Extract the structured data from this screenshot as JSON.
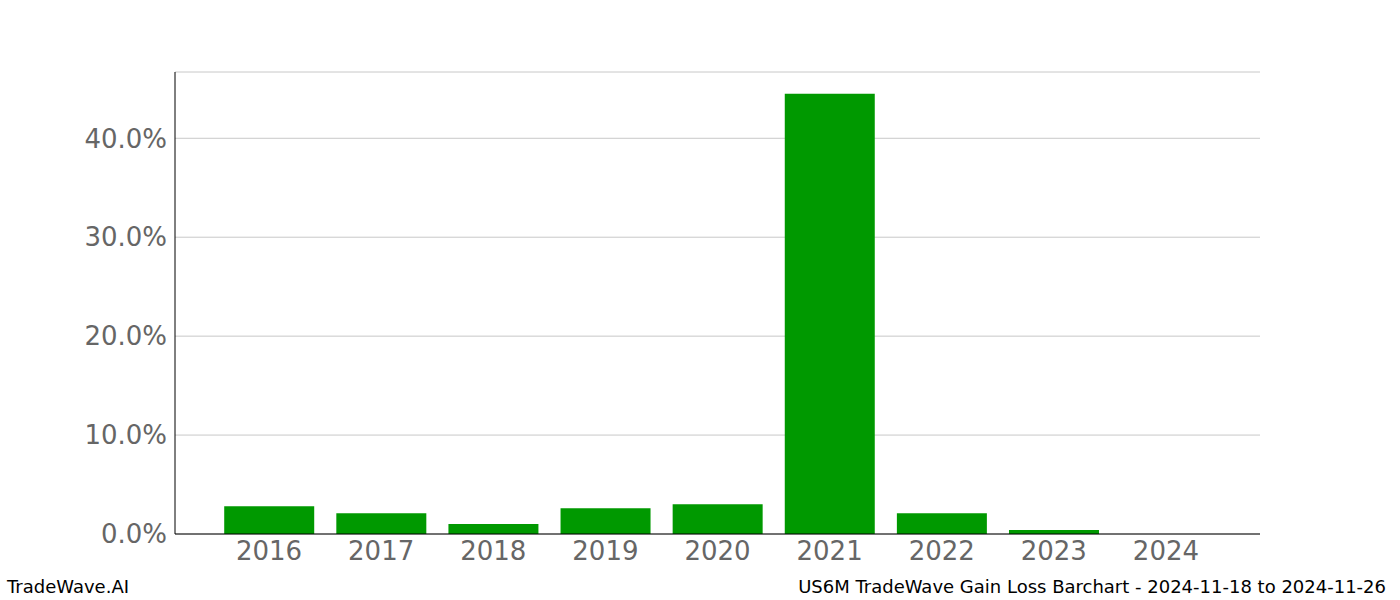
{
  "chart_data": {
    "type": "bar",
    "title": "US6M TradeWave Gain Loss Barchart - 2024-11-18 to 2024-11-26",
    "annotations": [
      "TradeWave.AI"
    ],
    "categories": [
      "2016",
      "2017",
      "2018",
      "2019",
      "2020",
      "2021",
      "2022",
      "2023",
      "2024"
    ],
    "values": [
      2.8,
      2.1,
      1.0,
      2.6,
      3.0,
      44.5,
      2.1,
      0.4,
      0
    ],
    "color": "#009900",
    "ylim": [
      0,
      46.7
    ],
    "yticks": [
      {
        "value": 0,
        "label": "0.0%"
      },
      {
        "value": 10,
        "label": "10.0%"
      },
      {
        "value": 20,
        "label": "20.0%"
      },
      {
        "value": 30,
        "label": "30.0%"
      },
      {
        "value": 40,
        "label": "40.0%"
      }
    ],
    "grid": true
  }
}
